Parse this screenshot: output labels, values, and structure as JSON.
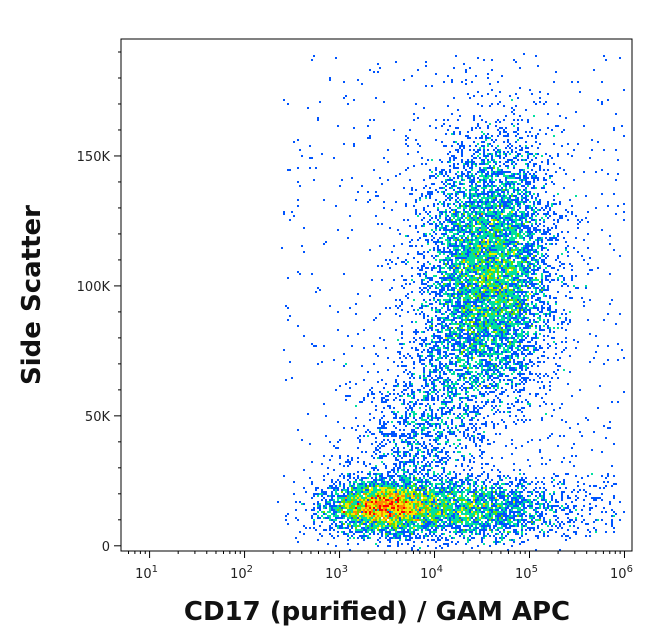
{
  "chart_data": {
    "type": "scatter",
    "subtype": "flow-cytometry density dot plot",
    "xlabel": "CD17 (purified) / GAM APC",
    "ylabel": "Side Scatter",
    "x_scale": "log",
    "xlim": [
      5,
      1200000
    ],
    "ylim": [
      -2000,
      195000
    ],
    "x_ticks": [
      {
        "value": 10,
        "base": "10",
        "exp": "1"
      },
      {
        "value": 100,
        "base": "10",
        "exp": "2"
      },
      {
        "value": 1000,
        "base": "10",
        "exp": "3"
      },
      {
        "value": 10000,
        "base": "10",
        "exp": "4"
      },
      {
        "value": 100000,
        "base": "10",
        "exp": "5"
      },
      {
        "value": 1000000,
        "base": "10",
        "exp": "6"
      }
    ],
    "y_ticks": [
      {
        "value": 0,
        "label": "0"
      },
      {
        "value": 50000,
        "label": "50K"
      },
      {
        "value": 100000,
        "label": "100K"
      },
      {
        "value": 150000,
        "label": "150K"
      }
    ],
    "populations": [
      {
        "center_x": 3000,
        "center_y": 15000,
        "spread_log_x": 0.28,
        "spread_y": 4500,
        "events": 4200
      },
      {
        "center_x": 40000,
        "center_y": 108000,
        "spread_log_x": 0.32,
        "spread_y": 24000,
        "events": 7500
      },
      {
        "center_x": 25000,
        "center_y": 14000,
        "spread_log_x": 0.45,
        "spread_y": 6000,
        "events": 2200
      }
    ],
    "density_colors": [
      "#0000cc",
      "#0055ff",
      "#00bbff",
      "#00e0a0",
      "#66dd00",
      "#eeee00",
      "#ff8800",
      "#ff0000"
    ],
    "grid": false,
    "legend": "none"
  }
}
